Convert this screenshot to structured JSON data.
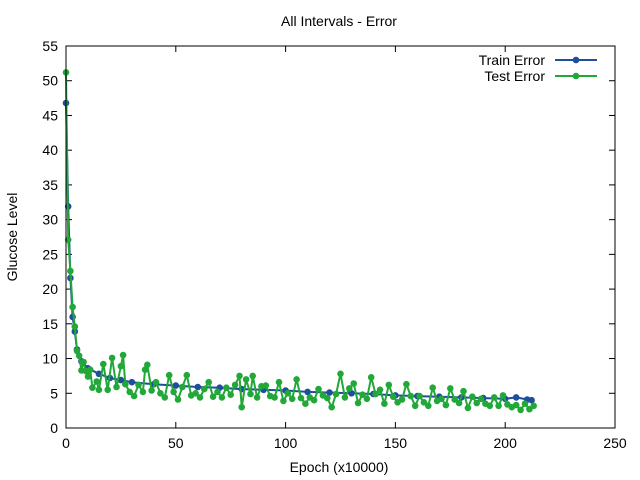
{
  "chart_data": {
    "type": "line",
    "title": "All Intervals - Error",
    "xlabel": "Epoch (x10000)",
    "ylabel": "Glucose Level",
    "xlim": [
      0,
      250
    ],
    "ylim": [
      0,
      55
    ],
    "x_ticks": [
      "0",
      "50",
      "100",
      "150",
      "200",
      "250"
    ],
    "y_ticks": [
      "0",
      "5",
      "10",
      "15",
      "20",
      "25",
      "30",
      "35",
      "40",
      "45",
      "50",
      "55"
    ],
    "grid": false,
    "legend_position": "top-right",
    "series": [
      {
        "name": "Train Error",
        "color": "#1f4e9c",
        "marker": "circle",
        "points": [
          [
            0,
            46.8
          ],
          [
            1,
            31.9
          ],
          [
            2,
            21.6
          ],
          [
            3,
            16.0
          ],
          [
            4,
            13.9
          ],
          [
            5,
            11.3
          ],
          [
            7,
            9.6
          ],
          [
            10,
            8.6
          ],
          [
            15,
            7.8
          ],
          [
            20,
            7.2
          ],
          [
            25,
            6.9
          ],
          [
            30,
            6.6
          ],
          [
            40,
            6.3
          ],
          [
            50,
            6.1
          ],
          [
            60,
            5.9
          ],
          [
            70,
            5.8
          ],
          [
            80,
            5.6
          ],
          [
            90,
            5.5
          ],
          [
            100,
            5.4
          ],
          [
            110,
            5.2
          ],
          [
            120,
            5.1
          ],
          [
            130,
            5.0
          ],
          [
            140,
            4.9
          ],
          [
            150,
            4.7
          ],
          [
            160,
            4.6
          ],
          [
            170,
            4.5
          ],
          [
            180,
            4.4
          ],
          [
            190,
            4.3
          ],
          [
            200,
            4.2
          ],
          [
            205,
            4.4
          ],
          [
            210,
            4.1
          ],
          [
            212,
            4.0
          ]
        ]
      },
      {
        "name": "Test Error",
        "color": "#22a838",
        "marker": "circle",
        "points": [
          [
            0,
            51.2
          ],
          [
            1,
            27.1
          ],
          [
            2,
            22.6
          ],
          [
            3,
            17.4
          ],
          [
            4,
            14.6
          ],
          [
            5,
            11.1
          ],
          [
            6,
            10.4
          ],
          [
            7,
            8.3
          ],
          [
            8,
            9.5
          ],
          [
            9,
            8.2
          ],
          [
            10,
            7.4
          ],
          [
            11,
            8.4
          ],
          [
            12,
            5.8
          ],
          [
            14,
            6.7
          ],
          [
            15,
            5.5
          ],
          [
            17,
            9.2
          ],
          [
            19,
            5.5
          ],
          [
            21,
            10.1
          ],
          [
            23,
            5.9
          ],
          [
            25,
            8.9
          ],
          [
            26,
            10.5
          ],
          [
            27,
            6.3
          ],
          [
            29,
            5.2
          ],
          [
            31,
            4.6
          ],
          [
            33,
            6.2
          ],
          [
            35,
            5.2
          ],
          [
            36,
            8.4
          ],
          [
            37,
            9.1
          ],
          [
            39,
            5.4
          ],
          [
            41,
            6.6
          ],
          [
            43,
            5.0
          ],
          [
            45,
            4.4
          ],
          [
            47,
            7.6
          ],
          [
            49,
            5.2
          ],
          [
            51,
            4.1
          ],
          [
            53,
            5.9
          ],
          [
            55,
            7.6
          ],
          [
            57,
            4.7
          ],
          [
            59,
            5.0
          ],
          [
            61,
            4.4
          ],
          [
            63,
            5.6
          ],
          [
            65,
            6.6
          ],
          [
            67,
            4.5
          ],
          [
            69,
            5.2
          ],
          [
            71,
            4.4
          ],
          [
            73,
            5.8
          ],
          [
            75,
            4.8
          ],
          [
            77,
            6.2
          ],
          [
            79,
            7.5
          ],
          [
            80,
            3.0
          ],
          [
            82,
            7.0
          ],
          [
            84,
            4.9
          ],
          [
            85,
            7.5
          ],
          [
            87,
            4.4
          ],
          [
            89,
            6.0
          ],
          [
            91,
            6.1
          ],
          [
            93,
            4.6
          ],
          [
            95,
            4.4
          ],
          [
            97,
            6.6
          ],
          [
            99,
            3.9
          ],
          [
            101,
            5.0
          ],
          [
            103,
            4.2
          ],
          [
            105,
            7.0
          ],
          [
            107,
            4.3
          ],
          [
            109,
            3.5
          ],
          [
            111,
            4.4
          ],
          [
            113,
            4.0
          ],
          [
            115,
            5.6
          ],
          [
            117,
            4.7
          ],
          [
            119,
            4.3
          ],
          [
            121,
            3.0
          ],
          [
            123,
            4.9
          ],
          [
            125,
            7.8
          ],
          [
            127,
            4.4
          ],
          [
            129,
            5.7
          ],
          [
            131,
            6.4
          ],
          [
            133,
            3.6
          ],
          [
            135,
            4.8
          ],
          [
            137,
            4.2
          ],
          [
            139,
            7.3
          ],
          [
            141,
            4.9
          ],
          [
            143,
            5.5
          ],
          [
            145,
            3.5
          ],
          [
            147,
            6.2
          ],
          [
            149,
            4.5
          ],
          [
            151,
            3.7
          ],
          [
            153,
            4.1
          ],
          [
            155,
            6.3
          ],
          [
            157,
            4.6
          ],
          [
            159,
            3.2
          ],
          [
            161,
            4.6
          ],
          [
            163,
            3.7
          ],
          [
            165,
            3.2
          ],
          [
            167,
            5.8
          ],
          [
            169,
            3.9
          ],
          [
            171,
            4.2
          ],
          [
            173,
            3.3
          ],
          [
            175,
            5.7
          ],
          [
            177,
            4.1
          ],
          [
            179,
            3.6
          ],
          [
            181,
            5.3
          ],
          [
            183,
            2.9
          ],
          [
            185,
            4.5
          ],
          [
            187,
            3.6
          ],
          [
            189,
            4.2
          ],
          [
            191,
            3.5
          ],
          [
            193,
            3.2
          ],
          [
            195,
            4.4
          ],
          [
            197,
            3.2
          ],
          [
            199,
            4.7
          ],
          [
            201,
            3.4
          ],
          [
            203,
            3.0
          ],
          [
            205,
            3.3
          ],
          [
            207,
            2.6
          ],
          [
            209,
            3.5
          ],
          [
            211,
            2.7
          ],
          [
            213,
            3.2
          ]
        ]
      }
    ]
  }
}
